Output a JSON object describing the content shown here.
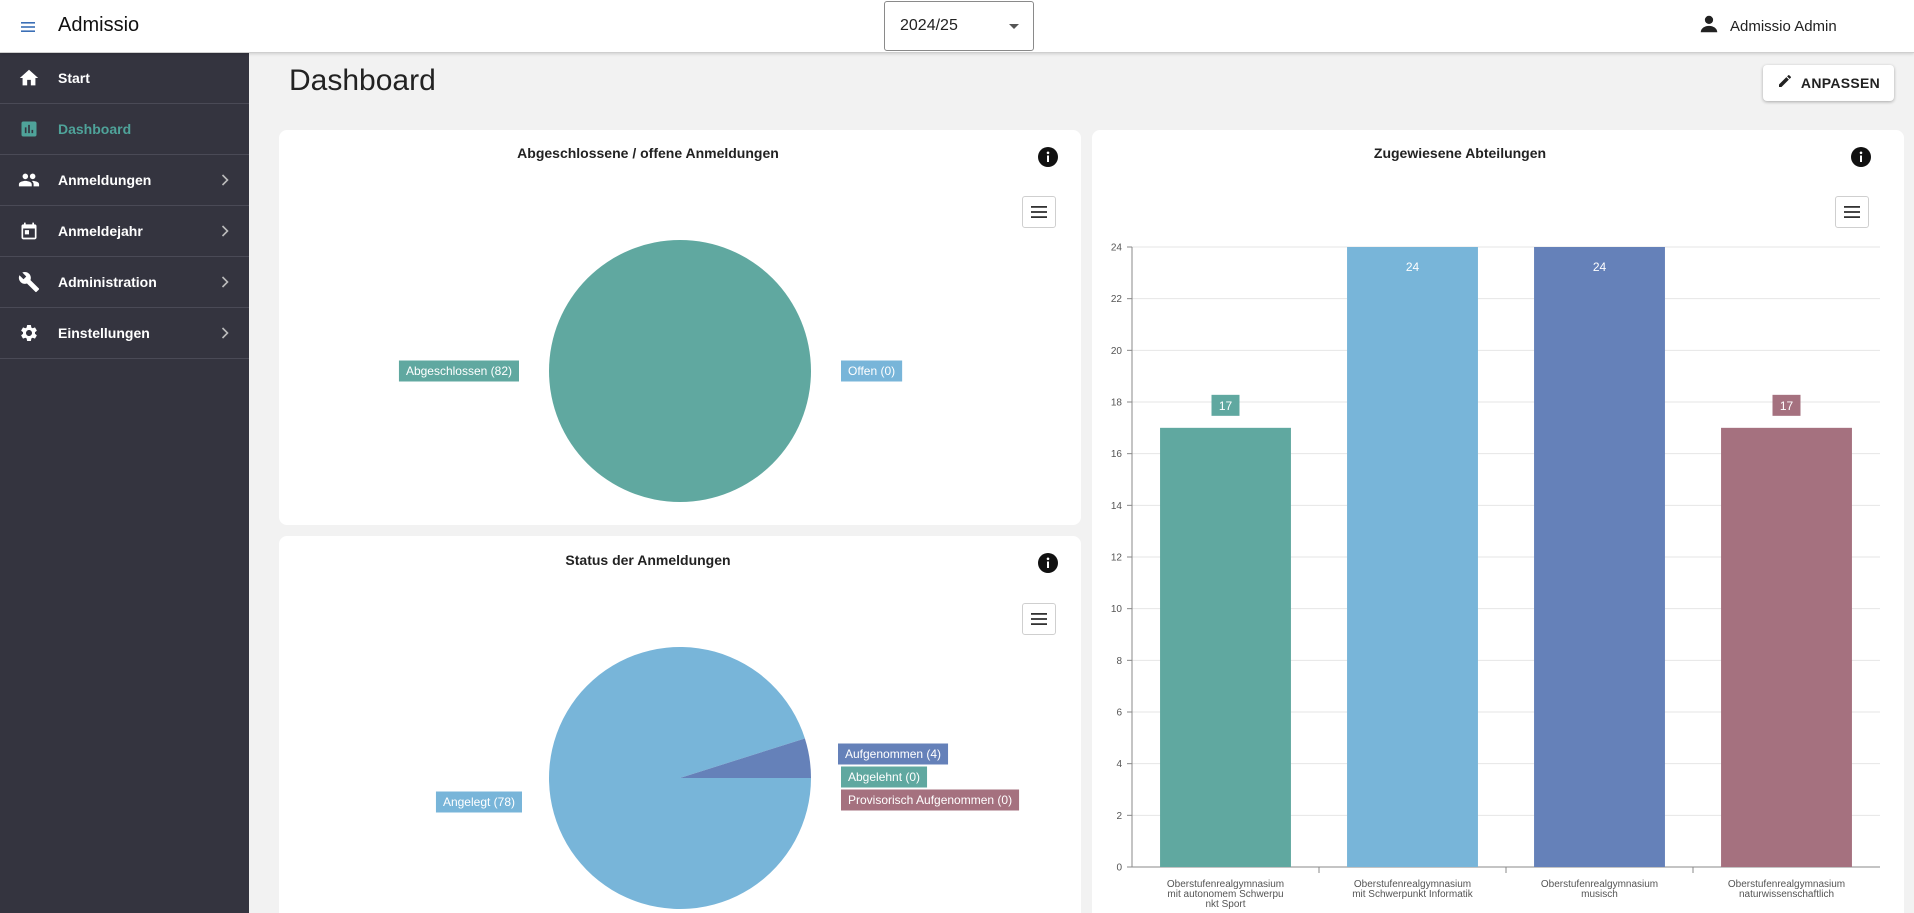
{
  "app": {
    "title": "Admissio"
  },
  "header": {
    "year_value": "2024/25",
    "user_name": "Admissio Admin"
  },
  "sidebar": {
    "items": [
      {
        "label": "Start",
        "icon": "home-icon"
      },
      {
        "label": "Dashboard",
        "icon": "bar-chart-icon",
        "active": true
      },
      {
        "label": "Anmeldungen",
        "icon": "people-icon",
        "expandable": true
      },
      {
        "label": "Anmeldejahr",
        "icon": "calendar-icon",
        "expandable": true
      },
      {
        "label": "Administration",
        "icon": "wrench-icon",
        "expandable": true
      },
      {
        "label": "Einstellungen",
        "icon": "gear-icon",
        "expandable": true
      }
    ]
  },
  "main": {
    "title": "Dashboard",
    "customize_label": "ANPASSEN"
  },
  "colors": {
    "teal": "#60a8a0",
    "light_blue": "#78b5d9",
    "blue": "#6581b9",
    "mauve": "#a5717f",
    "sidebar_bg": "#34343f",
    "active": "#4fa39a"
  },
  "chart_data": [
    {
      "type": "pie",
      "title": "Abgeschlossene / offene Anmeldungen",
      "slices": [
        {
          "label": "Abgeschlossen (82)",
          "value": 82,
          "color": "#60a8a0"
        },
        {
          "label": "Offen (0)",
          "value": 0,
          "color": "#78b5d9"
        }
      ]
    },
    {
      "type": "pie",
      "title": "Status der Anmeldungen",
      "slices": [
        {
          "label": "Angelegt (78)",
          "value": 78,
          "color": "#78b5d9"
        },
        {
          "label": "Aufgenommen (4)",
          "value": 4,
          "color": "#6581b9"
        },
        {
          "label": "Abgelehnt (0)",
          "value": 0,
          "color": "#60a8a0"
        },
        {
          "label": "Provisorisch Aufgenommen (0)",
          "value": 0,
          "color": "#a5717f"
        }
      ]
    },
    {
      "type": "bar",
      "title": "Zugewiesene Abteilungen",
      "categories": [
        [
          "Oberstufenrealgymnasium",
          "mit autonomem Schwerpu",
          "nkt Sport"
        ],
        [
          "Oberstufenrealgymnasium",
          "mit Schwerpunkt Informatik"
        ],
        [
          "Oberstufenrealgymnasium",
          "musisch"
        ],
        [
          "Oberstufenrealgymnasium",
          "naturwissenschaftlich"
        ]
      ],
      "values": [
        17,
        24,
        24,
        17
      ],
      "colors": [
        "#60a8a0",
        "#78b5d9",
        "#6581b9",
        "#a5717f"
      ],
      "ylim": [
        0,
        24
      ],
      "yticks": [
        0,
        2,
        4,
        6,
        8,
        10,
        12,
        14,
        16,
        18,
        20,
        22,
        24
      ],
      "grid": true
    }
  ]
}
